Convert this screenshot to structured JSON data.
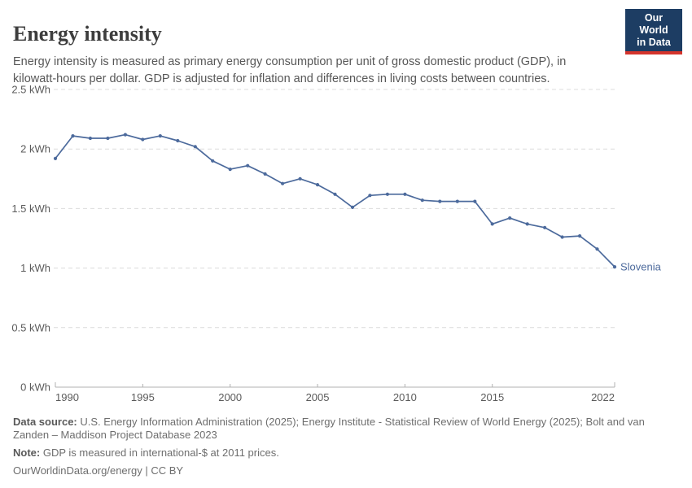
{
  "header": {
    "title": "Energy intensity",
    "subtitle": "Energy intensity is measured as primary energy consumption per unit of gross domestic product (GDP), in kilowatt-hours per dollar. GDP is adjusted for inflation and differences in living costs between countries."
  },
  "logo": {
    "line1": "Our World",
    "line2": "in Data"
  },
  "chart_data": {
    "type": "line",
    "title": "Energy intensity",
    "xlabel": "",
    "ylabel": "kilowatt-hours per dollar",
    "xlim": [
      1990,
      2022
    ],
    "ylim": [
      0,
      2.5
    ],
    "x_ticks": [
      1990,
      1995,
      2000,
      2005,
      2010,
      2015,
      2022
    ],
    "y_ticks": [
      0,
      0.5,
      1,
      1.5,
      2,
      2.5
    ],
    "y_tick_labels": [
      "0 kWh",
      "0.5 kWh",
      "1 kWh",
      "1.5 kWh",
      "2 kWh",
      "2.5 kWh"
    ],
    "grid": "horizontal-dashed",
    "legend_position": "end-of-line-label",
    "series": [
      {
        "name": "Slovenia",
        "x": [
          1990,
          1991,
          1992,
          1993,
          1994,
          1995,
          1996,
          1997,
          1998,
          1999,
          2000,
          2001,
          2002,
          2003,
          2004,
          2005,
          2006,
          2007,
          2008,
          2009,
          2010,
          2011,
          2012,
          2013,
          2014,
          2015,
          2016,
          2017,
          2018,
          2019,
          2020,
          2021,
          2022
        ],
        "values": [
          1.92,
          2.11,
          2.09,
          2.09,
          2.12,
          2.08,
          2.11,
          2.07,
          2.02,
          1.9,
          1.83,
          1.86,
          1.79,
          1.71,
          1.75,
          1.7,
          1.62,
          1.51,
          1.61,
          1.62,
          1.62,
          1.57,
          1.56,
          1.56,
          1.56,
          1.37,
          1.42,
          1.37,
          1.34,
          1.26,
          1.27,
          1.16,
          1.01
        ]
      }
    ]
  },
  "colors": {
    "line": "#4c6a9c",
    "grid": "#dcdcdc",
    "axis": "#b0b0b0",
    "tick_text": "#5b5b5b",
    "logo_bg": "#1d3d63",
    "logo_accent": "#d4342c"
  },
  "footer": {
    "datasource_label": "Data source:",
    "datasource_text": "U.S. Energy Information Administration (2025); Energy Institute - Statistical Review of World Energy (2025); Bolt and van Zanden – Maddison Project Database 2023",
    "note_label": "Note:",
    "note_text": "GDP is measured in international-$ at 2011 prices.",
    "license": "OurWorldinData.org/energy | CC BY"
  }
}
